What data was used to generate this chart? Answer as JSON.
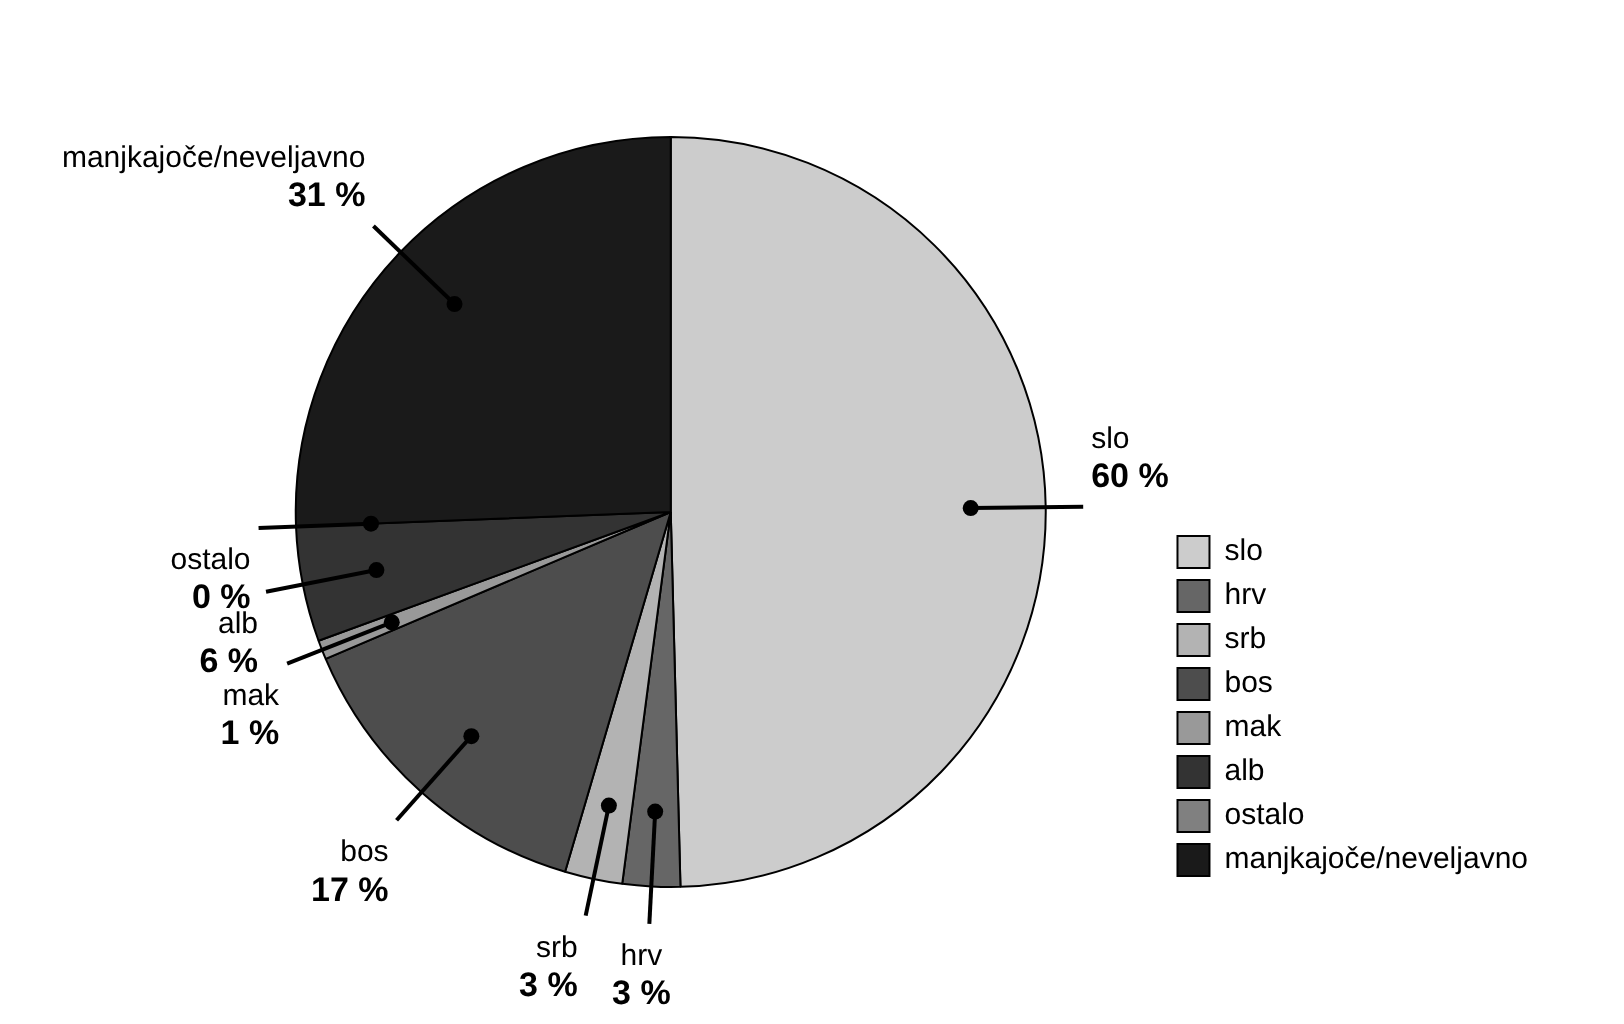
{
  "chart_data": {
    "type": "pie",
    "categories": [
      "slo",
      "hrv",
      "srb",
      "bos",
      "mak",
      "alb",
      "ostalo",
      "manjkajoče/neveljavno"
    ],
    "values": [
      60,
      3,
      3,
      17,
      1,
      6,
      0,
      31
    ],
    "value_labels": [
      "60 %",
      "3 %",
      "3 %",
      "17 %",
      "1 %",
      "6 %",
      "0 %",
      "31 %"
    ],
    "colors": [
      "#cccccc",
      "#666666",
      "#b3b3b3",
      "#4d4d4d",
      "#999999",
      "#333333",
      "#808080",
      "#1a1a1a"
    ],
    "legend": "bottom right"
  }
}
